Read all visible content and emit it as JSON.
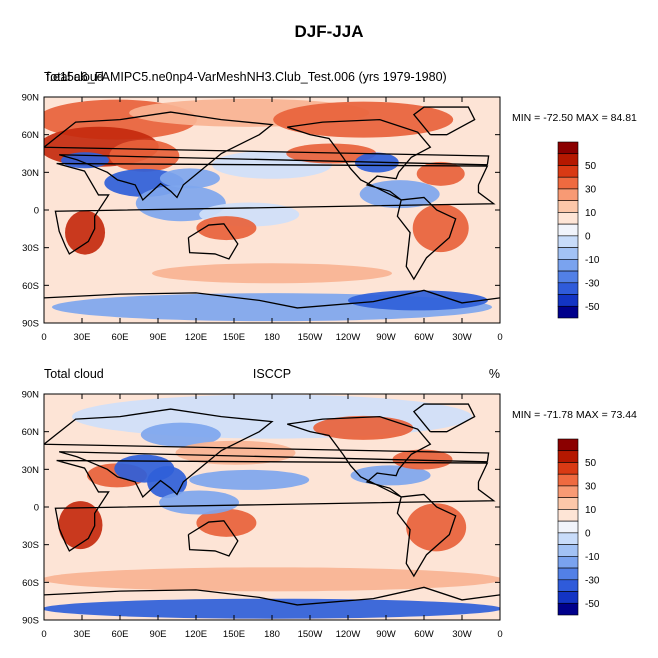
{
  "figure_title": "DJF-JJA",
  "panels": [
    {
      "left_label": "Total cloud",
      "center_label": "f.e15a6_FAMIPC5.ne0np4-VarMeshNH3.Club_Test.006 (yrs 1979-1980)",
      "right_label": "",
      "minmax": "MIN = -72.50 MAX =  84.81"
    },
    {
      "left_label": "Total cloud",
      "center_label": "ISCCP",
      "right_label": "%",
      "minmax": "MIN = -71.78 MAX =  73.44"
    }
  ],
  "axes": {
    "lat_ticks": [
      "90N",
      "60N",
      "30N",
      "0",
      "30S",
      "60S",
      "90S"
    ],
    "lon_ticks": [
      "0",
      "30E",
      "60E",
      "90E",
      "120E",
      "150E",
      "180",
      "150W",
      "120W",
      "90W",
      "60W",
      "30W",
      "0"
    ]
  },
  "colorbar": {
    "labels": [
      "50",
      "30",
      "10",
      "0",
      "-10",
      "-30",
      "-50"
    ],
    "colors": [
      "#8b0000",
      "#b51800",
      "#d93a14",
      "#ef6a40",
      "#f89a74",
      "#fcc7a9",
      "#fee5d6",
      "#f1f4fb",
      "#c8dcfa",
      "#a2c2f5",
      "#7aa3ef",
      "#5280e6",
      "#2f5bda",
      "#1334c4",
      "#00008b"
    ]
  },
  "map_colors": {
    "strong_pos": "#c42a0e",
    "pos": "#e8623b",
    "weak_pos": "#f9b393",
    "near_zero": "#fde4d6",
    "weak_neg": "#cfe0fa",
    "neg": "#7ea6ee",
    "strong_neg": "#2f5fd9",
    "coast": "#000000"
  }
}
